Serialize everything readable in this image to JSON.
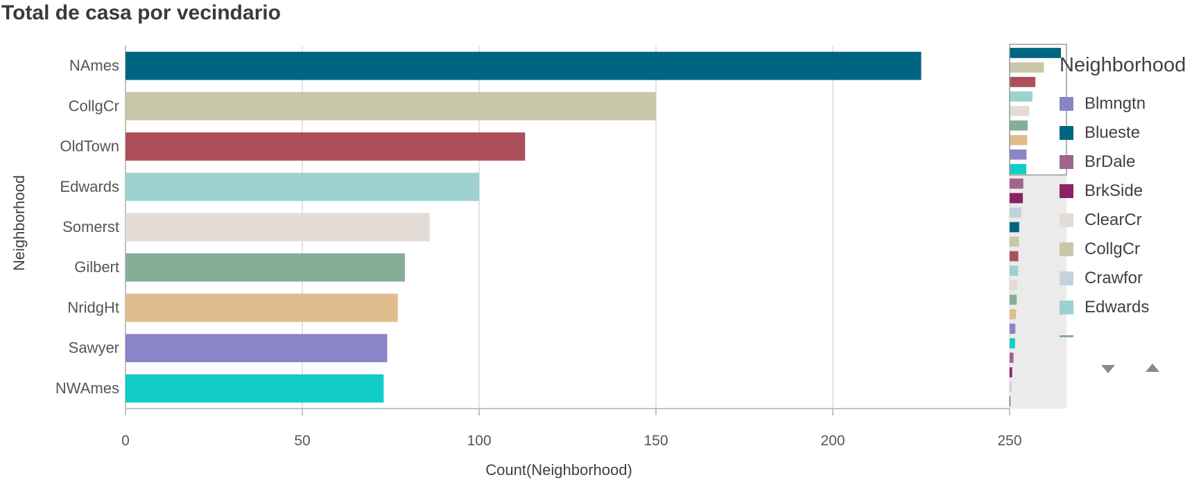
{
  "title": "Total de casa por vecindario",
  "chart_data": {
    "type": "bar",
    "orientation": "horizontal",
    "categories": [
      "NAmes",
      "CollgCr",
      "OldTown",
      "Edwards",
      "Somerst",
      "Gilbert",
      "NridgHt",
      "Sawyer",
      "NWAmes"
    ],
    "values": [
      225,
      150,
      113,
      100,
      86,
      79,
      77,
      74,
      73
    ],
    "colors": [
      "#006580",
      "#c8c8a9",
      "#ad4f5b",
      "#9dd1cf",
      "#e3dbd6",
      "#85ae98",
      "#e0bd8e",
      "#8a85c7",
      "#12ccc9"
    ],
    "xlabel": "Count(Neighborhood)",
    "ylabel": "Neighborhood",
    "xlim": [
      0,
      250
    ],
    "xticks": [
      "0",
      "50",
      "100",
      "150",
      "200",
      "250"
    ],
    "grid": true,
    "legend_position": "right",
    "minimap": {
      "values": [
        225,
        150,
        113,
        100,
        86,
        79,
        77,
        74,
        73,
        60,
        58,
        51,
        42,
        41,
        38,
        37,
        33,
        31,
        28,
        25,
        24,
        17,
        11,
        9,
        2
      ],
      "colors": [
        "#006580",
        "#c8c8a9",
        "#ad4f5b",
        "#9dd1cf",
        "#e3dbd6",
        "#85ae98",
        "#e0bd8e",
        "#8a85c7",
        "#12ccc9",
        "#a0648f",
        "#8a2362",
        "#c5d2dd",
        "#006580",
        "#c8c8a9",
        "#ad4f5b",
        "#9dd1cf",
        "#e3dbd6",
        "#85ae98",
        "#e0bd8e",
        "#8a85c7",
        "#12ccc9",
        "#a0648f",
        "#8a2362",
        "#c5d2dd",
        "#006580"
      ],
      "visible_count": 9
    }
  },
  "legend": {
    "title": "Neighborhood",
    "items": [
      {
        "label": "Blmngtn",
        "color": "#8a85c7"
      },
      {
        "label": "Blueste",
        "color": "#006580"
      },
      {
        "label": "BrDale",
        "color": "#a0648f"
      },
      {
        "label": "BrkSide",
        "color": "#8a2362"
      },
      {
        "label": "ClearCr",
        "color": "#e3dbd6"
      },
      {
        "label": "CollgCr",
        "color": "#c8c8a9"
      },
      {
        "label": "Crawfor",
        "color": "#c5d2dd"
      },
      {
        "label": "Edwards",
        "color": "#9dd1cf"
      }
    ],
    "more_color": "#85ae98"
  }
}
